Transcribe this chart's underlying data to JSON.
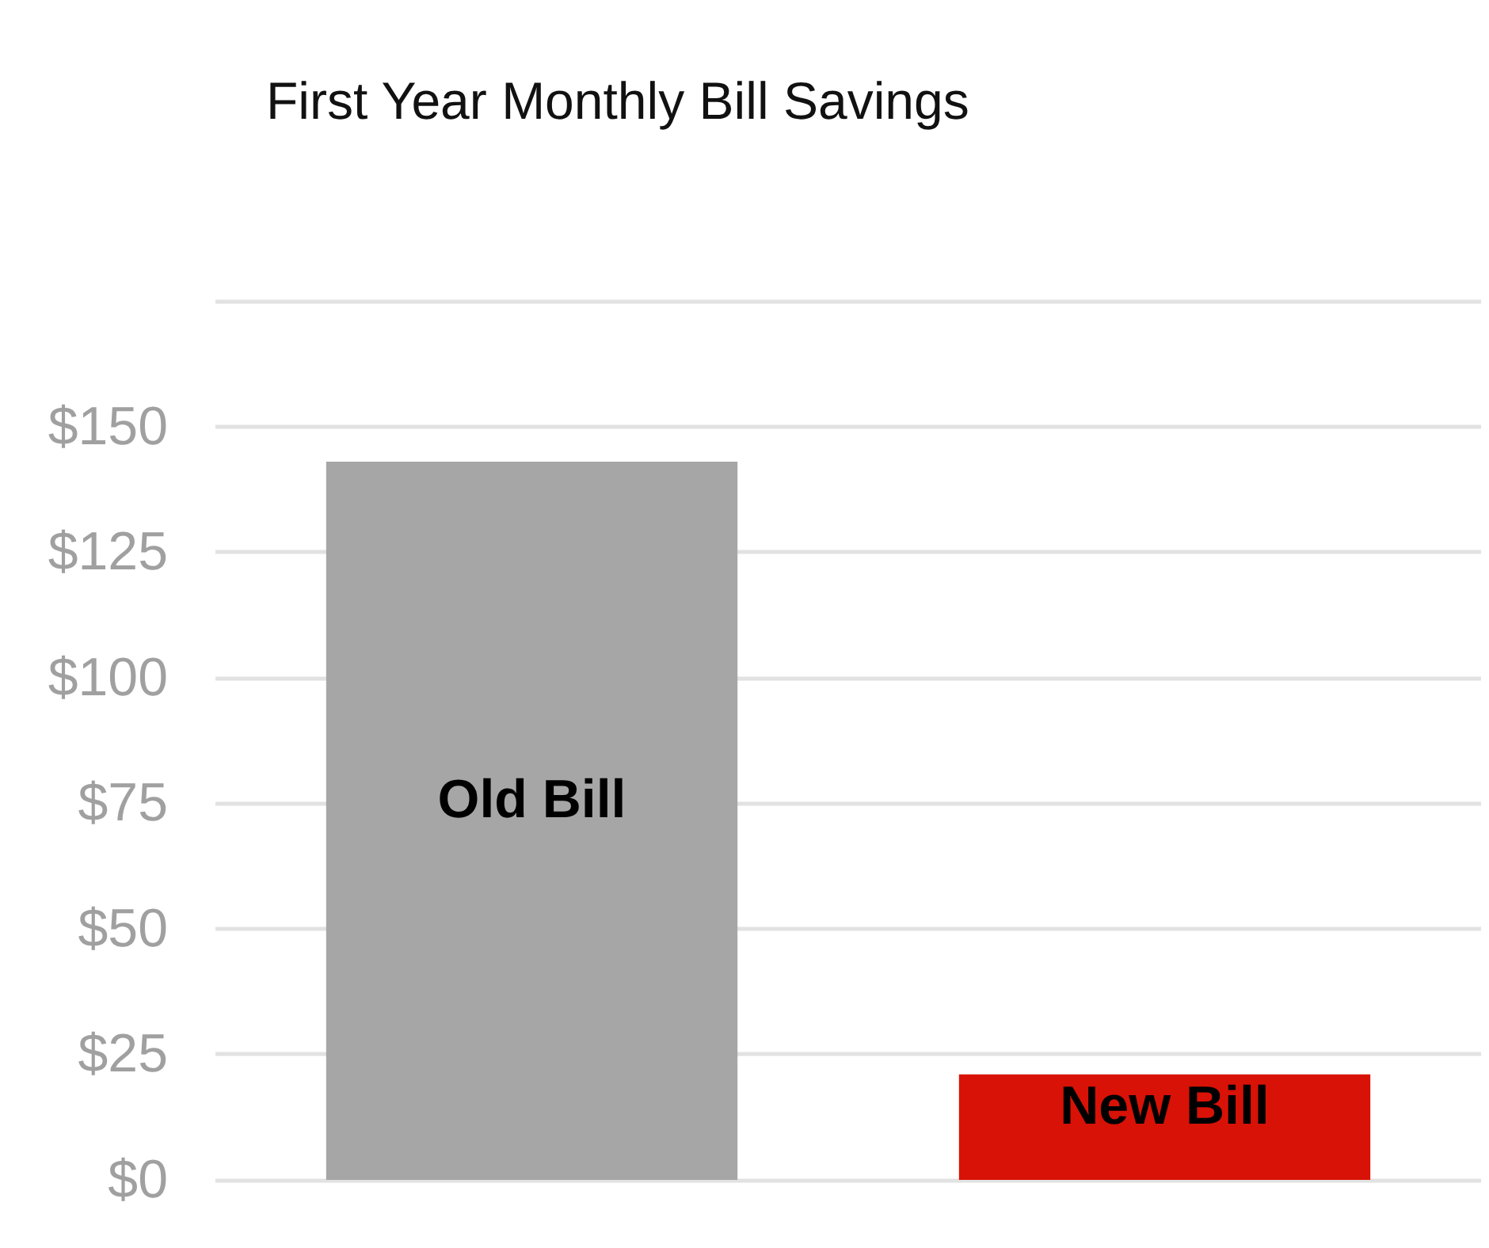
{
  "chart_data": {
    "type": "bar",
    "title": "First Year Monthly Bill Savings",
    "categories": [
      "Old Bill",
      "New Bill"
    ],
    "values": [
      143,
      21
    ],
    "colors": [
      "#a6a6a6",
      "#d81206"
    ],
    "ylim": [
      0,
      175
    ],
    "yticks": [
      {
        "value": 0,
        "label": "$0"
      },
      {
        "value": 25,
        "label": "$25"
      },
      {
        "value": 50,
        "label": "$50"
      },
      {
        "value": 75,
        "label": "$75"
      },
      {
        "value": 100,
        "label": "$100"
      },
      {
        "value": 125,
        "label": "$125"
      },
      {
        "value": 150,
        "label": "$150"
      },
      {
        "value": 175,
        "label": null
      }
    ],
    "grid": "y",
    "tick_labels": "y"
  }
}
